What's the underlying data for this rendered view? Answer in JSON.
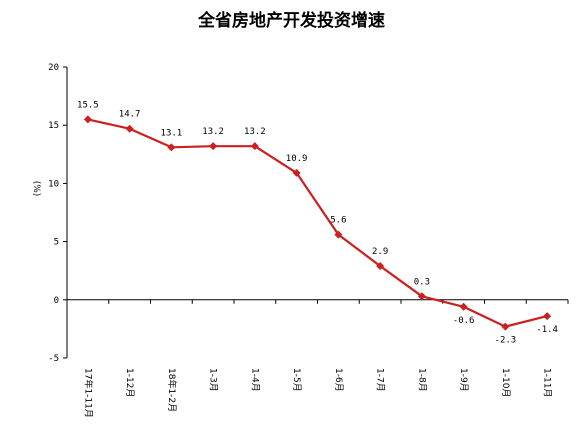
{
  "chart_data": {
    "type": "line",
    "title": "全省房地产开发投资增速",
    "ylabel": "(%)",
    "xlabel": "",
    "ylim": [
      -5,
      20
    ],
    "yticks": [
      "20",
      "15",
      "10",
      "5",
      "0",
      "-5"
    ],
    "ytick_values": [
      20,
      15,
      10,
      5,
      0,
      -5
    ],
    "categories": [
      "17年1-11月",
      "1-12月",
      "18年1-2月",
      "1-3月",
      "1-4月",
      "1-5月",
      "1-6月",
      "1-7月",
      "1-8月",
      "1-9月",
      "1-10月",
      "1-11月"
    ],
    "series": [
      {
        "values": [
          15.5,
          14.7,
          13.1,
          13.2,
          13.2,
          10.9,
          5.6,
          2.9,
          0.3,
          -0.6,
          -2.3,
          -1.4
        ],
        "labels": [
          "15.5",
          "14.7",
          "13.1",
          "13.2",
          "13.2",
          "10.9",
          "5.6",
          "2.9",
          "0.3",
          "-0.6",
          "-2.3",
          "-1.4"
        ],
        "color": "#cc1f1f"
      }
    ],
    "grid": false,
    "legend": "none"
  }
}
